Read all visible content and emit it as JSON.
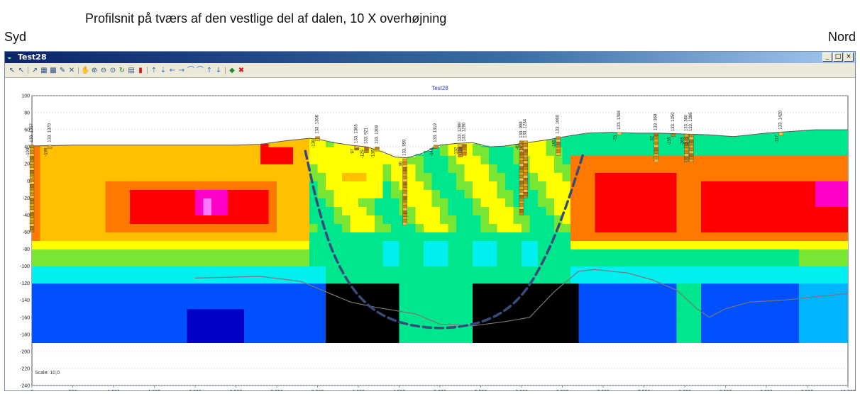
{
  "caption": "Profilsnit på tværs af den vestlige del af dalen, 10 X overhøjning",
  "left_label": "Syd",
  "right_label": "Nord",
  "window": {
    "title": "Test28",
    "controls": [
      "_",
      "□",
      "×"
    ]
  },
  "toolbar": {
    "buttons": [
      {
        "name": "select-icon",
        "glyph": "↖"
      },
      {
        "name": "select-multi-icon",
        "glyph": "↖"
      },
      {
        "name": "sep"
      },
      {
        "name": "pointer-icon",
        "glyph": "↗"
      },
      {
        "name": "table-icon",
        "glyph": "▦"
      },
      {
        "name": "grid-icon",
        "glyph": "▩"
      },
      {
        "name": "edit-icon",
        "glyph": "✎"
      },
      {
        "name": "delete-icon",
        "glyph": "✕"
      },
      {
        "name": "sep"
      },
      {
        "name": "pan-icon",
        "glyph": "✋"
      },
      {
        "name": "zoom-in-icon",
        "glyph": "⊕"
      },
      {
        "name": "zoom-out-icon",
        "glyph": "⊖"
      },
      {
        "name": "zoom-fit-icon",
        "glyph": "⊙"
      },
      {
        "name": "refresh-icon",
        "glyph": "↻",
        "cls": "green"
      },
      {
        "name": "print-icon",
        "glyph": "▤"
      },
      {
        "name": "stop-icon",
        "glyph": "▮",
        "cls": "red"
      },
      {
        "name": "sep"
      },
      {
        "name": "move-up-icon",
        "glyph": "⇡",
        "cls": "blue"
      },
      {
        "name": "move-down-icon",
        "glyph": "⇣",
        "cls": "blue"
      },
      {
        "name": "arrow-left-icon",
        "glyph": "←",
        "cls": "blue"
      },
      {
        "name": "arrow-right-icon",
        "glyph": "→",
        "cls": "blue"
      },
      {
        "name": "curve-up-icon",
        "glyph": "⌒",
        "cls": "blue"
      },
      {
        "name": "curve-down-icon",
        "glyph": "⌒",
        "cls": "blue"
      },
      {
        "name": "step-up-icon",
        "glyph": "↑",
        "cls": "blue"
      },
      {
        "name": "step-down-icon",
        "glyph": "↓",
        "cls": "blue"
      },
      {
        "name": "sep"
      },
      {
        "name": "export-icon",
        "glyph": "◆",
        "cls": "green"
      },
      {
        "name": "close-view-icon",
        "glyph": "✖",
        "cls": "red"
      }
    ]
  },
  "plot": {
    "title": "Test28",
    "scale_label": "Scale: 10,0"
  },
  "colors": {
    "scale": [
      "#0000c8",
      "#0050ff",
      "#00b4ff",
      "#00f0f0",
      "#00e68c",
      "#78e632",
      "#ffff00",
      "#ffc000",
      "#ff7800",
      "#ff0000",
      "#ff00c8",
      "#ff78ff"
    ],
    "valley_outline": "#3a4a7a"
  },
  "chart_data": {
    "type": "heatmap",
    "title": "Test28",
    "x_ticks": [
      "0",
      "500",
      "1.000",
      "1.500",
      "2.000",
      "2.500",
      "3.000",
      "3.500",
      "4.000",
      "4.500",
      "5.000",
      "5.500",
      "6.000",
      "6.500",
      "7.000",
      "7.500",
      "8.000",
      "8.500",
      "9.000",
      "9.500",
      "10.000"
    ],
    "y_ticks": [
      "100",
      "80",
      "60",
      "40",
      "20",
      "0",
      "-20",
      "-40",
      "-60",
      "-80",
      "-100",
      "-120",
      "-140",
      "-160",
      "-180",
      "-200",
      "-220",
      "-240"
    ],
    "xlim": [
      0,
      10000
    ],
    "ylim": [
      -240,
      100
    ],
    "model_bottom": -200,
    "grid": true,
    "scale": "10,0",
    "terrain": [
      [
        0,
        41
      ],
      [
        500,
        42
      ],
      [
        1000,
        42
      ],
      [
        1500,
        42
      ],
      [
        2000,
        42
      ],
      [
        2500,
        42
      ],
      [
        2800,
        43
      ],
      [
        3100,
        47
      ],
      [
        3400,
        50
      ],
      [
        3500,
        49
      ],
      [
        3700,
        45
      ],
      [
        3900,
        42
      ],
      [
        4100,
        40
      ],
      [
        4300,
        34
      ],
      [
        4450,
        28
      ],
      [
        4600,
        27
      ],
      [
        4800,
        33
      ],
      [
        5000,
        42
      ],
      [
        5200,
        44
      ],
      [
        5400,
        45
      ],
      [
        5600,
        40
      ],
      [
        5800,
        41
      ],
      [
        6000,
        44
      ],
      [
        6300,
        48
      ],
      [
        6600,
        53
      ],
      [
        6800,
        56
      ],
      [
        7100,
        57
      ],
      [
        7400,
        56
      ],
      [
        7700,
        56
      ],
      [
        8000,
        55
      ],
      [
        8300,
        54
      ],
      [
        8600,
        52
      ],
      [
        9000,
        56
      ],
      [
        9300,
        58
      ],
      [
        9600,
        60
      ],
      [
        10000,
        60
      ]
    ],
    "layer_boundary": [
      [
        2000,
        -114
      ],
      [
        2800,
        -112
      ],
      [
        3300,
        -118
      ],
      [
        3600,
        -130
      ],
      [
        3900,
        -142
      ],
      [
        4200,
        -148
      ],
      [
        4700,
        -156
      ],
      [
        5000,
        -168
      ],
      [
        5400,
        -170
      ],
      [
        5800,
        -165
      ],
      [
        6100,
        -160
      ],
      [
        6400,
        -130
      ],
      [
        6700,
        -106
      ],
      [
        6900,
        -104
      ],
      [
        7300,
        -108
      ],
      [
        7600,
        -116
      ],
      [
        7900,
        -128
      ],
      [
        8150,
        -150
      ],
      [
        8300,
        -160
      ],
      [
        8500,
        -150
      ],
      [
        8800,
        -142
      ],
      [
        9200,
        -140
      ],
      [
        9600,
        -136
      ],
      [
        10000,
        -132
      ]
    ],
    "valley_outline": [
      [
        3350,
        35
      ],
      [
        3500,
        -30
      ],
      [
        3700,
        -90
      ],
      [
        4000,
        -138
      ],
      [
        4400,
        -165
      ],
      [
        5000,
        -175
      ],
      [
        5600,
        -165
      ],
      [
        6000,
        -138
      ],
      [
        6300,
        -90
      ],
      [
        6550,
        -30
      ],
      [
        6750,
        30
      ]
    ],
    "boreholes": [
      {
        "label": "133. 1357",
        "x": 0,
        "top": 42,
        "bottom": -60,
        "side": "-199"
      },
      {
        "label": "133. 1370",
        "x": 220,
        "top": 42,
        "bottom": 38,
        "side": "-199"
      },
      {
        "label": "133. 1306",
        "x": 3500,
        "top": 52,
        "bottom": 47,
        "side": "-138"
      },
      {
        "label": "133. 1305",
        "x": 3980,
        "top": 41,
        "bottom": 36,
        "side": "97"
      },
      {
        "label": "133. 921",
        "x": 4100,
        "top": 40,
        "bottom": 33,
        "side": "-129"
      },
      {
        "label": "133. 1308",
        "x": 4230,
        "top": 40,
        "bottom": 35,
        "side": "-138"
      },
      {
        "label": "133. 959",
        "x": 4570,
        "top": 26,
        "bottom": -52,
        "side": "36"
      },
      {
        "label": "133. 1319",
        "x": 4950,
        "top": 42,
        "bottom": 38,
        "side": "-148"
      },
      {
        "label": "133. 1289",
        "x": 5250,
        "top": 43,
        "bottom": 28,
        "side": "-132"
      },
      {
        "label": "133. 1290",
        "x": 5300,
        "top": 43,
        "bottom": 30,
        "side": "-118"
      },
      {
        "label": "133. 998",
        "x": 6000,
        "top": 47,
        "bottom": -40,
        "side": "-81"
      },
      {
        "label": "133. 1234",
        "x": 6050,
        "top": 47,
        "bottom": -20,
        "side": "-141"
      },
      {
        "label": "133. 1060",
        "x": 6450,
        "top": 52,
        "bottom": 30,
        "side": "-165"
      },
      {
        "label": "133. 1394",
        "x": 7200,
        "top": 57,
        "bottom": 54,
        "side": "-73"
      },
      {
        "label": "133. 369",
        "x": 7650,
        "top": 56,
        "bottom": 22,
        "side": "32"
      },
      {
        "label": "133. 1350",
        "x": 7860,
        "top": 55,
        "bottom": 52,
        "side": "-135"
      },
      {
        "label": "133. 360",
        "x": 8020,
        "top": 55,
        "bottom": 22,
        "side": "-265"
      },
      {
        "label": "133. 1386",
        "x": 8080,
        "top": 55,
        "bottom": 22,
        "side": "-241"
      },
      {
        "label": "133. 1420",
        "x": 9180,
        "top": 57,
        "bottom": 53,
        "side": "-117"
      }
    ]
  }
}
